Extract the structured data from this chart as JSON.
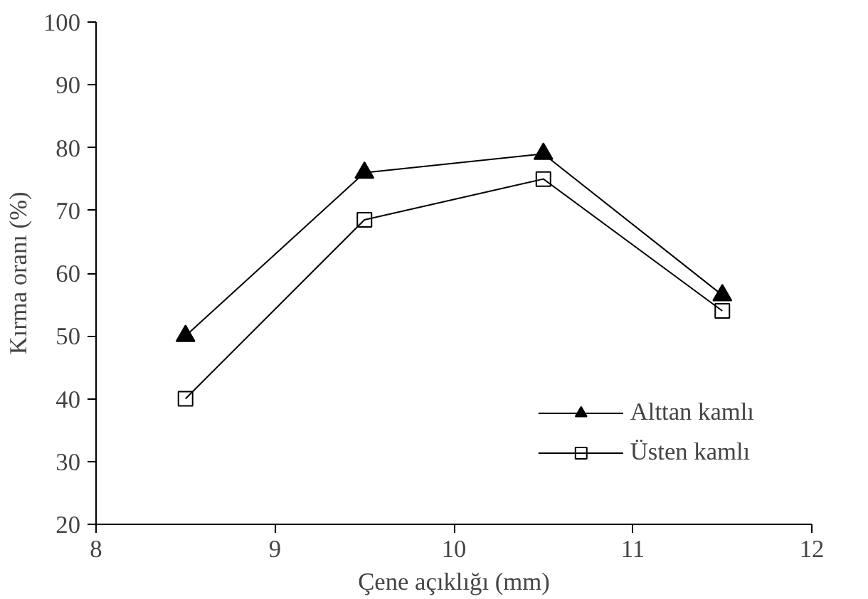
{
  "chart_data": {
    "type": "line",
    "xlabel": "Çene açıklığı (mm)",
    "ylabel": "Kırma oranı (%)",
    "x": [
      8.5,
      9.5,
      10.5,
      11.5
    ],
    "series": [
      {
        "name": "Alttan kamlı",
        "color": "#000000",
        "marker": "triangle",
        "values": [
          50,
          76,
          79,
          56.5
        ]
      },
      {
        "name": "Üsten kamlı",
        "color": "#000000",
        "marker": "square",
        "values": [
          40,
          68.5,
          75,
          54
        ]
      }
    ],
    "xlim": [
      8,
      12
    ],
    "xticks": [
      8,
      9,
      10,
      11,
      12
    ],
    "ylim": [
      20,
      100
    ],
    "yticks": [
      20,
      30,
      40,
      50,
      60,
      70,
      80,
      90,
      100
    ],
    "grid": false,
    "legend": "bottom right",
    "line_style": "solid"
  }
}
